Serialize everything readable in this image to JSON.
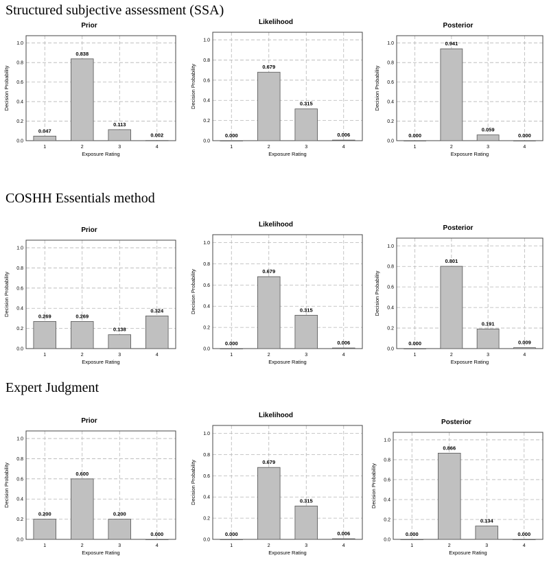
{
  "sections": [
    {
      "title": "Structured subjective assessment (SSA)"
    },
    {
      "title": "COSHH Essentials method"
    },
    {
      "title": "Expert Judgment"
    }
  ],
  "chart_data": [
    {
      "type": "bar",
      "title": "Prior",
      "categories": [
        "1",
        "2",
        "3",
        "4"
      ],
      "values": [
        0.047,
        0.838,
        0.113,
        0.002
      ],
      "labels": [
        "0.047",
        "0.838",
        "0.113",
        "0.002"
      ],
      "xlabel": "Exposure Rating",
      "ylabel": "Decision Probability",
      "ylim": [
        0,
        1.0
      ],
      "yticks": [
        "0.0",
        "0.2",
        "0.4",
        "0.6",
        "0.8",
        "1.0"
      ],
      "grid": true
    },
    {
      "type": "bar",
      "title": "Likelihood",
      "categories": [
        "1",
        "2",
        "3",
        "4"
      ],
      "values": [
        0.0,
        0.679,
        0.315,
        0.006
      ],
      "labels": [
        "0.000",
        "0.679",
        "0.315",
        "0.006"
      ],
      "xlabel": "Exposure Rating",
      "ylabel": "Decision Probability",
      "ylim": [
        0,
        1.0
      ],
      "yticks": [
        "0.0",
        "0.2",
        "0.4",
        "0.6",
        "0.8",
        "1.0"
      ],
      "grid": true
    },
    {
      "type": "bar",
      "title": "Posterior",
      "categories": [
        "1",
        "2",
        "3",
        "4"
      ],
      "values": [
        0.0,
        0.941,
        0.059,
        0.0
      ],
      "labels": [
        "0.000",
        "0.941",
        "0.059",
        "0.000"
      ],
      "xlabel": "Exposure Rating",
      "ylabel": "Decision Probability",
      "ylim": [
        0,
        1.0
      ],
      "yticks": [
        "0.0",
        "0.2",
        "0.4",
        "0.6",
        "0.8",
        "1.0"
      ],
      "grid": true
    },
    {
      "type": "bar",
      "title": "Prior",
      "categories": [
        "1",
        "2",
        "3",
        "4"
      ],
      "values": [
        0.269,
        0.269,
        0.138,
        0.324
      ],
      "labels": [
        "0.269",
        "0.269",
        "0.138",
        "0.324"
      ],
      "xlabel": "Exposure Rating",
      "ylabel": "Decision Probability",
      "ylim": [
        0,
        1.0
      ],
      "yticks": [
        "0.0",
        "0.2",
        "0.4",
        "0.6",
        "0.8",
        "1.0"
      ],
      "grid": true
    },
    {
      "type": "bar",
      "title": "Likelihood",
      "categories": [
        "1",
        "2",
        "3",
        "4"
      ],
      "values": [
        0.0,
        0.679,
        0.315,
        0.006
      ],
      "labels": [
        "0.000",
        "0.679",
        "0.315",
        "0.006"
      ],
      "xlabel": "Exposure Rating",
      "ylabel": "Decision Probability",
      "ylim": [
        0,
        1.0
      ],
      "yticks": [
        "0.0",
        "0.2",
        "0.4",
        "0.6",
        "0.8",
        "1.0"
      ],
      "grid": true
    },
    {
      "type": "bar",
      "title": "Posterior",
      "categories": [
        "1",
        "2",
        "3",
        "4"
      ],
      "values": [
        0.0,
        0.801,
        0.191,
        0.009
      ],
      "labels": [
        "0.000",
        "0.801",
        "0.191",
        "0.009"
      ],
      "xlabel": "Exposure Rating",
      "ylabel": "Decision Probability",
      "ylim": [
        0,
        1.0
      ],
      "yticks": [
        "0.0",
        "0.2",
        "0.4",
        "0.6",
        "0.8",
        "1.0"
      ],
      "grid": true
    },
    {
      "type": "bar",
      "title": "Prior",
      "categories": [
        "1",
        "2",
        "3",
        "4"
      ],
      "values": [
        0.2,
        0.6,
        0.2,
        0.0
      ],
      "labels": [
        "0.200",
        "0.600",
        "0.200",
        "0.000"
      ],
      "xlabel": "Exposure Rating",
      "ylabel": "Decision Probability",
      "ylim": [
        0,
        1.0
      ],
      "yticks": [
        "0.0",
        "0.2",
        "0.4",
        "0.6",
        "0.8",
        "1.0"
      ],
      "grid": true
    },
    {
      "type": "bar",
      "title": "Likelihood",
      "categories": [
        "1",
        "2",
        "3",
        "4"
      ],
      "values": [
        0.0,
        0.679,
        0.315,
        0.006
      ],
      "labels": [
        "0.000",
        "0.679",
        "0.315",
        "0.006"
      ],
      "xlabel": "Exposure Rating",
      "ylabel": "Decision Probability",
      "ylim": [
        0,
        1.0
      ],
      "yticks": [
        "0.0",
        "0.2",
        "0.4",
        "0.6",
        "0.8",
        "1.0"
      ],
      "grid": true
    },
    {
      "type": "bar",
      "title": "Posterior",
      "categories": [
        "1",
        "2",
        "3",
        "4"
      ],
      "values": [
        0.0,
        0.866,
        0.134,
        0.0
      ],
      "labels": [
        "0.000",
        "0.866",
        "0.134",
        "0.000"
      ],
      "xlabel": "Exposure Rating",
      "ylabel": "Decision Probability",
      "ylim": [
        0,
        1.0
      ],
      "yticks": [
        "0.0",
        "0.2",
        "0.4",
        "0.6",
        "0.8",
        "1.0"
      ],
      "grid": true
    }
  ]
}
